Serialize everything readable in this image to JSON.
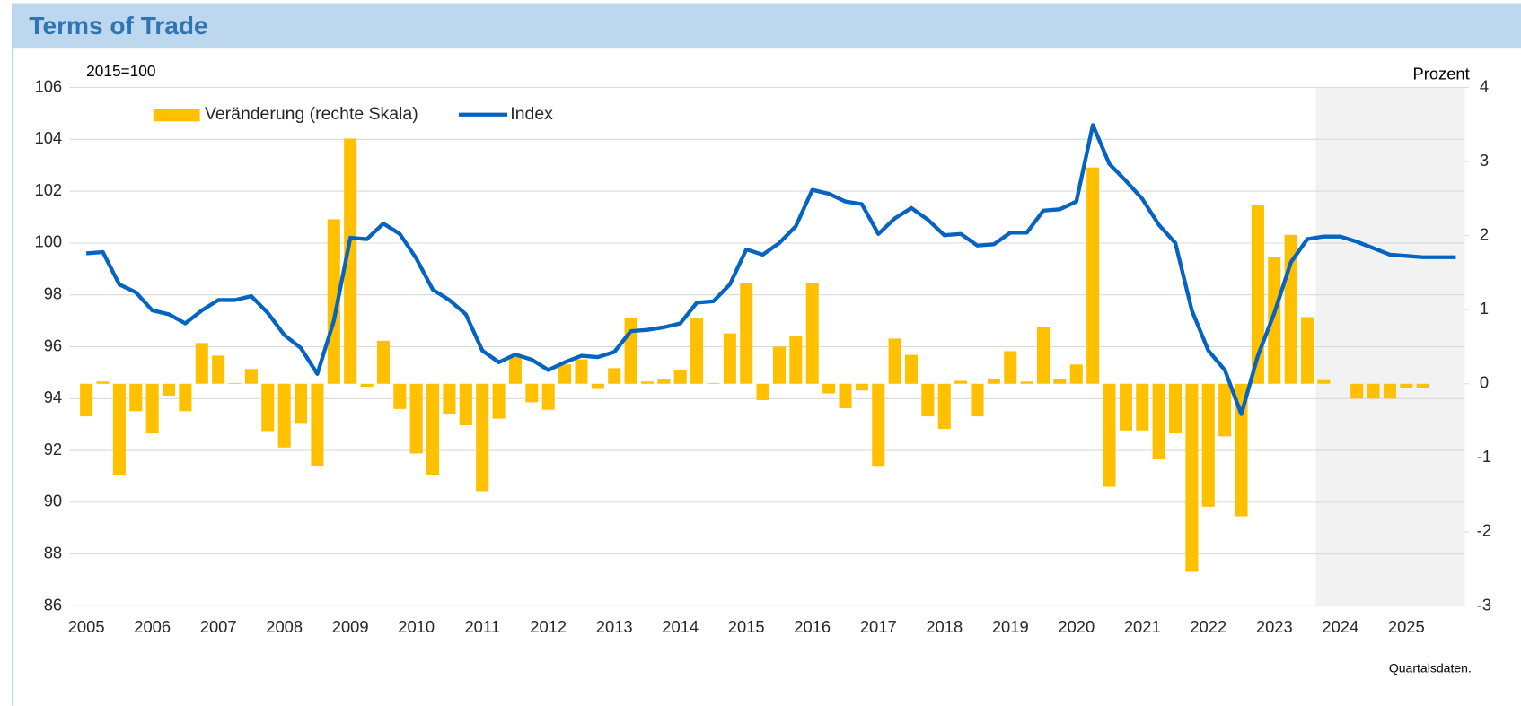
{
  "chart_data": {
    "type": "combo",
    "title": "Terms of Trade",
    "y_label": "2015=100",
    "y2_label": "Prozent",
    "note": "Quartalsdaten.",
    "categories": [
      "2005",
      null,
      null,
      null,
      "2006",
      null,
      null,
      null,
      "2007",
      null,
      null,
      null,
      "2008",
      null,
      null,
      null,
      "2009",
      null,
      null,
      null,
      "2010",
      null,
      null,
      null,
      "2011",
      null,
      null,
      null,
      "2012",
      null,
      null,
      null,
      "2013",
      null,
      null,
      null,
      "2014",
      null,
      null,
      null,
      "2015",
      null,
      null,
      null,
      "2016",
      null,
      null,
      null,
      "2017",
      null,
      null,
      null,
      "2018",
      null,
      null,
      null,
      "2019",
      null,
      null,
      null,
      "2020",
      null,
      null,
      null,
      "2021",
      null,
      null,
      null,
      "2022",
      null,
      null,
      null,
      "2023",
      null,
      null,
      null,
      "2024",
      null,
      null,
      null,
      "2025",
      null,
      null,
      null
    ],
    "ylim": [
      86,
      106
    ],
    "yticks": [
      86,
      88,
      90,
      92,
      94,
      96,
      98,
      100,
      102,
      104,
      106
    ],
    "y2lim": [
      -3,
      4
    ],
    "y2ticks": [
      -3,
      -2,
      -1,
      0,
      1,
      2,
      3,
      4
    ],
    "grid": true,
    "legend": "top-left",
    "series": [
      {
        "name": "Veränderung (rechte Skala)",
        "type": "bar",
        "axis": "y2",
        "color": "#ffc000",
        "values": [
          -0.44,
          0.03,
          -1.23,
          -0.37,
          -0.67,
          -0.16,
          -0.37,
          0.55,
          0.38,
          0.01,
          0.2,
          -0.65,
          -0.86,
          -0.54,
          -1.11,
          2.22,
          3.31,
          -0.04,
          0.58,
          -0.34,
          -0.94,
          -1.23,
          -0.41,
          -0.56,
          -1.45,
          -0.47,
          0.37,
          -0.25,
          -0.35,
          0.26,
          0.33,
          -0.07,
          0.21,
          0.89,
          0.03,
          0.06,
          0.18,
          0.88,
          0.01,
          0.68,
          1.36,
          -0.22,
          0.5,
          0.65,
          1.36,
          -0.13,
          -0.33,
          -0.09,
          -1.12,
          0.61,
          0.39,
          -0.44,
          -0.61,
          0.04,
          -0.44,
          0.07,
          0.44,
          0.03,
          0.77,
          0.07,
          0.26,
          2.92,
          -1.39,
          -0.63,
          -0.63,
          -1.02,
          -0.67,
          -2.54,
          -1.66,
          -0.71,
          -1.79,
          2.41,
          1.71,
          2.01,
          0.9,
          0.05,
          0,
          -0.2,
          -0.2,
          -0.2,
          -0.06,
          -0.06,
          0,
          0
        ]
      },
      {
        "name": "Index",
        "type": "line",
        "color": "#0563c1",
        "values": [
          99.6,
          99.65,
          98.4,
          98.1,
          97.4,
          97.25,
          96.9,
          97.4,
          97.8,
          97.8,
          97.95,
          97.3,
          96.45,
          95.95,
          94.95,
          97.0,
          100.2,
          100.15,
          100.75,
          100.35,
          99.4,
          98.2,
          97.8,
          97.25,
          95.85,
          95.4,
          95.7,
          95.5,
          95.1,
          95.4,
          95.65,
          95.6,
          95.8,
          96.6,
          96.65,
          96.75,
          96.9,
          97.7,
          97.75,
          98.4,
          99.75,
          99.55,
          100.0,
          100.65,
          102.05,
          101.9,
          101.6,
          101.5,
          100.35,
          100.95,
          101.35,
          100.9,
          100.3,
          100.35,
          99.9,
          99.95,
          100.4,
          100.4,
          101.25,
          101.3,
          101.6,
          104.55,
          103.05,
          102.4,
          101.7,
          100.7,
          100.0,
          97.4,
          95.85,
          95.1,
          93.4,
          95.65,
          97.3,
          99.25,
          100.15,
          100.25,
          100.25,
          100.05,
          99.8,
          99.55,
          99.5,
          99.45,
          99.45,
          99.45
        ]
      }
    ]
  }
}
